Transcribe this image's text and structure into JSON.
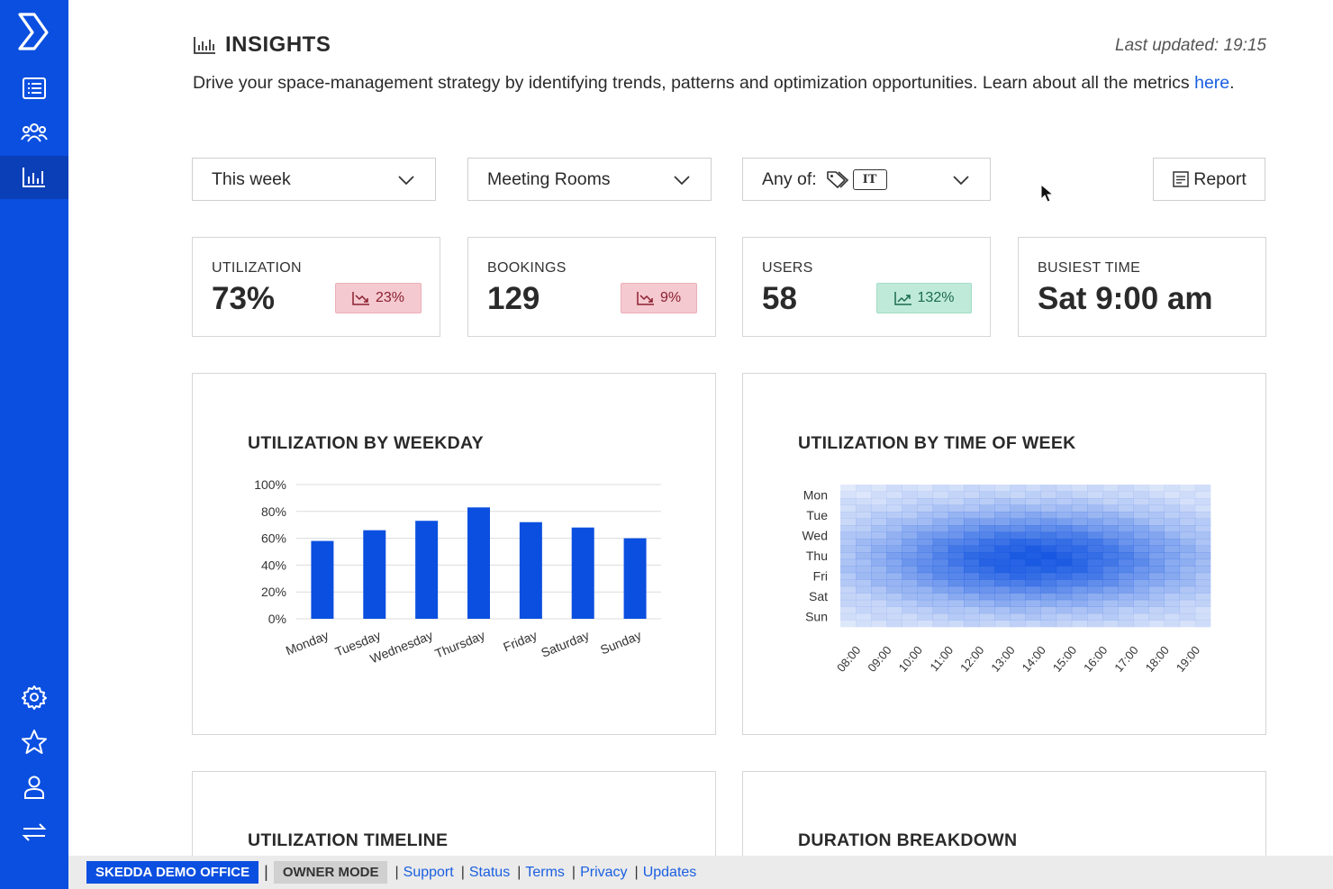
{
  "header": {
    "title": "INSIGHTS",
    "last_updated": "Last updated: 19:15",
    "description": "Drive your space-management strategy by identifying trends, patterns and optimization opportunities. Learn about all the metrics",
    "link_text": "here",
    "link_suffix": "."
  },
  "filters": {
    "period": "This week",
    "space_type": "Meeting Rooms",
    "tags_prefix": "Any of:",
    "tag": "IT",
    "report_label": "Report"
  },
  "cards": [
    {
      "label": "UTILIZATION",
      "value": "73%",
      "change": "23%",
      "trend": "down"
    },
    {
      "label": "BOOKINGS",
      "value": "129",
      "change": "9%",
      "trend": "down"
    },
    {
      "label": "USERS",
      "value": "58",
      "change": "132%",
      "trend": "up"
    },
    {
      "label": "BUSIEST TIME",
      "value": "Sat 9:00 am"
    }
  ],
  "panels": {
    "weekday_title": "UTILIZATION BY WEEKDAY",
    "time_of_week_title": "UTILIZATION BY TIME OF WEEK",
    "timeline_title": "UTILIZATION TIMELINE",
    "duration_title": "DURATION BREAKDOWN"
  },
  "chart_data": [
    {
      "type": "bar",
      "title": "UTILIZATION BY WEEKDAY",
      "categories": [
        "Monday",
        "Tuesday",
        "Wednesday",
        "Thursday",
        "Friday",
        "Saturday",
        "Sunday"
      ],
      "values": [
        58,
        66,
        73,
        83,
        72,
        68,
        60
      ],
      "y_ticks": [
        "0%",
        "20%",
        "40%",
        "60%",
        "80%",
        "100%"
      ],
      "ylim": [
        0,
        100
      ],
      "grid": true,
      "color": "#0b4fe0"
    },
    {
      "type": "heatmap",
      "title": "UTILIZATION BY TIME OF WEEK",
      "rows": [
        "Mon",
        "Tue",
        "Wed",
        "Thu",
        "Fri",
        "Sat",
        "Sun"
      ],
      "columns": [
        "08:00",
        "09:00",
        "10:00",
        "11:00",
        "12:00",
        "13:00",
        "14:00",
        "15:00",
        "16:00",
        "17:00",
        "18:00",
        "19:00"
      ],
      "color": "#0b4fe0"
    }
  ],
  "footer": {
    "office": "SKEDDA DEMO OFFICE",
    "mode": "OWNER MODE",
    "links": [
      "Support",
      "Status",
      "Terms",
      "Privacy",
      "Updates"
    ]
  }
}
